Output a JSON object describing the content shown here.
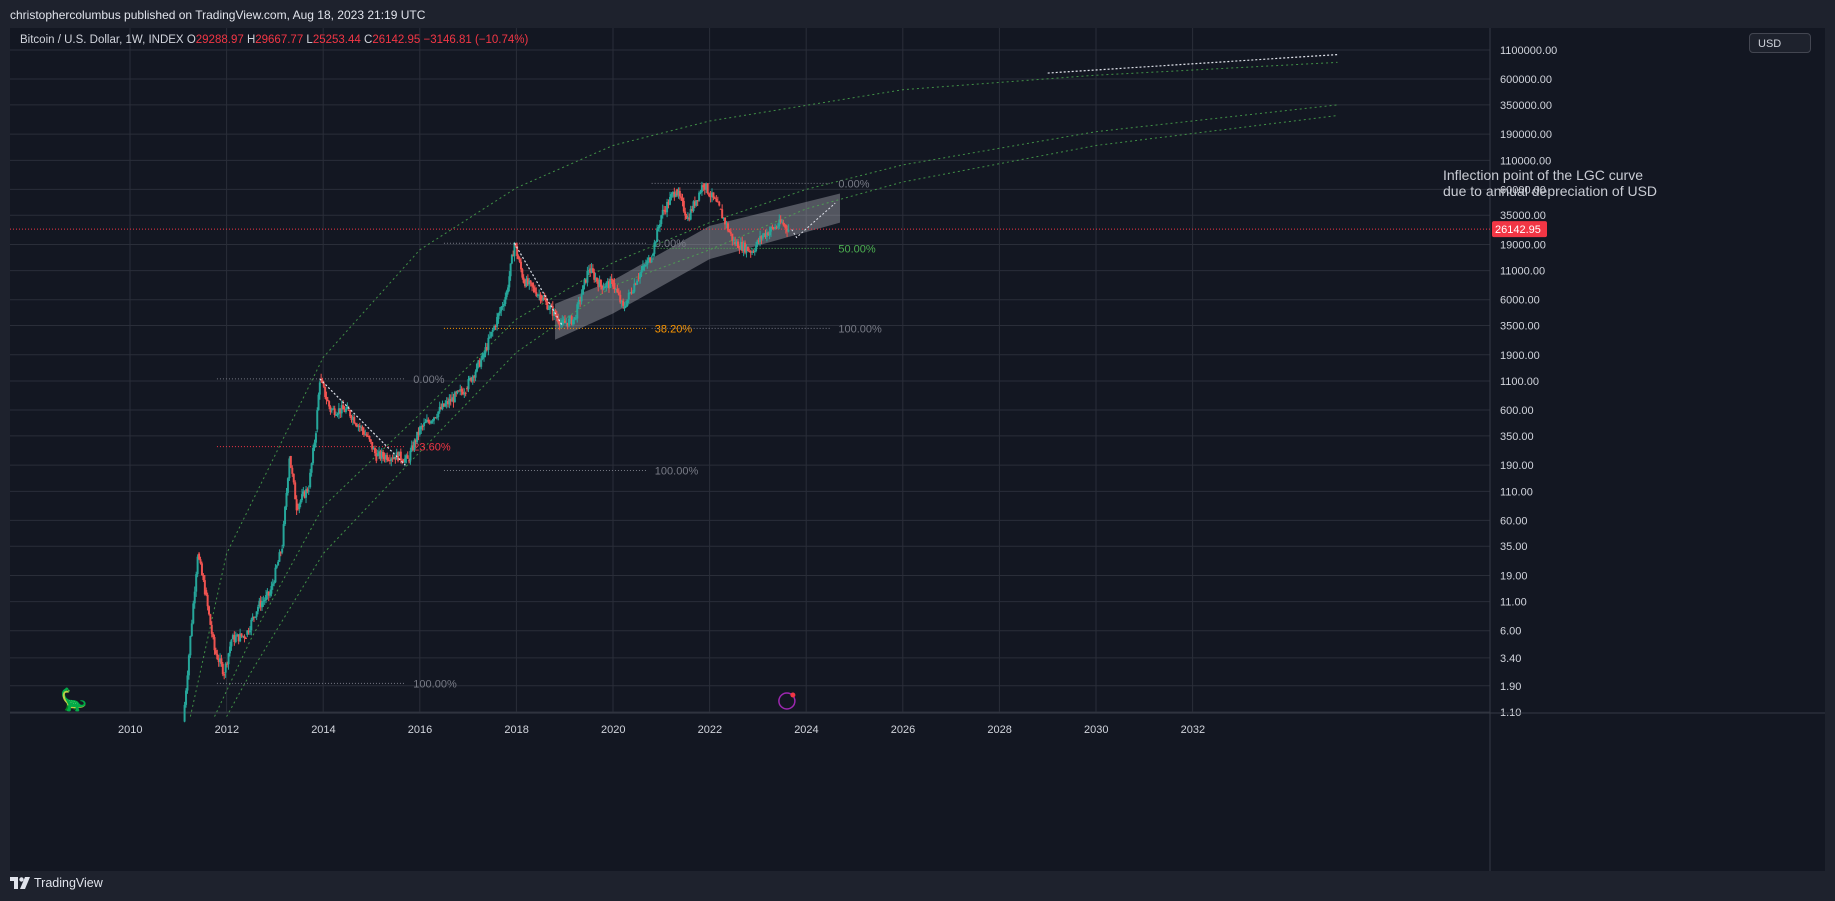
{
  "header": {
    "published_by": "christophercolumbus published on TradingView.com, Aug 18, 2023 21:19 UTC"
  },
  "legend": {
    "symbol": "Bitcoin / U.S. Dollar, 1W, INDEX",
    "o_label": "O",
    "o_value": "29288.97",
    "h_label": "H",
    "h_value": "29667.77",
    "l_label": "L",
    "l_value": "25253.44",
    "c_label": "C",
    "c_value": "26142.95",
    "change": "−3146.81 (−10.74%)"
  },
  "currency_button": "USD",
  "annotation": {
    "line1": "Inflection point of the LGC curve",
    "line2": "due to annual depreciation of USD"
  },
  "footer": {
    "brand": "TradingView"
  },
  "colors": {
    "background": "#131722",
    "up": "#26a69a",
    "down": "#ef5350",
    "price_line": "#f23645",
    "fib_green": "#4caf50",
    "fib_orange": "#ff9800",
    "fib_red": "#f23645",
    "lgc_curve": "#4caf50"
  },
  "chart_data": {
    "type": "candlestick",
    "title": "Bitcoin / U.S. Dollar, 1W, INDEX",
    "x_ticks": [
      "2010",
      "2012",
      "2014",
      "2016",
      "2018",
      "2020",
      "2022",
      "2024",
      "2026",
      "2028",
      "2030",
      "2032"
    ],
    "y_scale": "log",
    "y_ticks": [
      "1100000.00",
      "600000.00",
      "350000.00",
      "190000.00",
      "110000.00",
      "60000.00",
      "35000.00",
      "19000.00",
      "11000.00",
      "6000.00",
      "3500.00",
      "1900.00",
      "1100.00",
      "600.00",
      "350.00",
      "190.00",
      "110.00",
      "60.00",
      "35.00",
      "19.00",
      "11.00",
      "6.00",
      "3.40",
      "1.90",
      "1.10"
    ],
    "current_price": "26142.95",
    "price_path": [
      {
        "date": "2011.10",
        "price": 0.9
      },
      {
        "date": "2011.40",
        "price": 30
      },
      {
        "date": "2011.55",
        "price": 14
      },
      {
        "date": "2011.75",
        "price": 4
      },
      {
        "date": "2011.95",
        "price": 2.5
      },
      {
        "date": "2012.10",
        "price": 5
      },
      {
        "date": "2012.40",
        "price": 5.5
      },
      {
        "date": "2012.65",
        "price": 10
      },
      {
        "date": "2012.90",
        "price": 13
      },
      {
        "date": "2013.15",
        "price": 35
      },
      {
        "date": "2013.30",
        "price": 230
      },
      {
        "date": "2013.45",
        "price": 80
      },
      {
        "date": "2013.70",
        "price": 120
      },
      {
        "date": "2013.85",
        "price": 400
      },
      {
        "date": "2013.93",
        "price": 1150
      },
      {
        "date": "2014.15",
        "price": 600
      },
      {
        "date": "2014.50",
        "price": 600
      },
      {
        "date": "2014.90",
        "price": 350
      },
      {
        "date": "2015.10",
        "price": 230
      },
      {
        "date": "2015.55",
        "price": 230
      },
      {
        "date": "2015.75",
        "price": 210
      },
      {
        "date": "2016.00",
        "price": 400
      },
      {
        "date": "2016.50",
        "price": 650
      },
      {
        "date": "2016.95",
        "price": 950
      },
      {
        "date": "2017.30",
        "price": 1800
      },
      {
        "date": "2017.60",
        "price": 4000
      },
      {
        "date": "2017.80",
        "price": 7000
      },
      {
        "date": "2017.96",
        "price": 19500
      },
      {
        "date": "2018.15",
        "price": 9000
      },
      {
        "date": "2018.50",
        "price": 6500
      },
      {
        "date": "2018.95",
        "price": 3600
      },
      {
        "date": "2019.20",
        "price": 4000
      },
      {
        "date": "2019.50",
        "price": 11500
      },
      {
        "date": "2019.75",
        "price": 8000
      },
      {
        "date": "2020.00",
        "price": 8500
      },
      {
        "date": "2020.21",
        "price": 5000
      },
      {
        "date": "2020.50",
        "price": 9500
      },
      {
        "date": "2020.80",
        "price": 15000
      },
      {
        "date": "2021.00",
        "price": 35000
      },
      {
        "date": "2021.30",
        "price": 60000
      },
      {
        "date": "2021.55",
        "price": 33000
      },
      {
        "date": "2021.87",
        "price": 68000
      },
      {
        "date": "2022.20",
        "price": 40000
      },
      {
        "date": "2022.50",
        "price": 20000
      },
      {
        "date": "2022.88",
        "price": 16500
      },
      {
        "date": "2023.10",
        "price": 23000
      },
      {
        "date": "2023.50",
        "price": 30000
      },
      {
        "date": "2023.63",
        "price": 26142.95
      }
    ],
    "fibonacci_sets": [
      {
        "levels": [
          {
            "label": "0.00%",
            "price": 1150
          },
          {
            "label": "23.60%",
            "price": 280
          },
          {
            "label": "100.00%",
            "price": 2
          }
        ]
      },
      {
        "levels": [
          {
            "label": "0.00%",
            "price": 19500
          },
          {
            "label": "38.20%",
            "price": 3300
          },
          {
            "label": "100.00%",
            "price": 170
          }
        ]
      },
      {
        "levels": [
          {
            "label": "0.00%",
            "price": 68000
          },
          {
            "label": "50.00%",
            "price": 17500
          },
          {
            "label": "100.00%",
            "price": 3300
          }
        ]
      }
    ],
    "lgc_curves": [
      {
        "points": [
          {
            "date": "2011.25",
            "price": 1.0
          },
          {
            "date": "2012.00",
            "price": 30
          },
          {
            "date": "2014.00",
            "price": 1800
          },
          {
            "date": "2016.00",
            "price": 17000
          },
          {
            "date": "2018.00",
            "price": 62000
          },
          {
            "date": "2020.00",
            "price": 150000
          },
          {
            "date": "2022.00",
            "price": 250000
          },
          {
            "date": "2026.00",
            "price": 480000
          },
          {
            "date": "2030.00",
            "price": 650000
          },
          {
            "date": "2035.00",
            "price": 850000
          }
        ]
      },
      {
        "points": [
          {
            "date": "2011.75",
            "price": 1.0
          },
          {
            "date": "2012.50",
            "price": 5
          },
          {
            "date": "2014.00",
            "price": 80
          },
          {
            "date": "2016.00",
            "price": 550
          },
          {
            "date": "2018.00",
            "price": 4000
          },
          {
            "date": "2020.00",
            "price": 13000
          },
          {
            "date": "2022.00",
            "price": 30000
          },
          {
            "date": "2024.00",
            "price": 60000
          },
          {
            "date": "2026.00",
            "price": 100000
          },
          {
            "date": "2030.00",
            "price": 200000
          },
          {
            "date": "2035.00",
            "price": 350000
          }
        ]
      },
      {
        "points": [
          {
            "date": "2012.00",
            "price": 1.0
          },
          {
            "date": "2012.50",
            "price": 2.5
          },
          {
            "date": "2014.00",
            "price": 30
          },
          {
            "date": "2016.00",
            "price": 250
          },
          {
            "date": "2018.00",
            "price": 2000
          },
          {
            "date": "2020.00",
            "price": 8000
          },
          {
            "date": "2022.00",
            "price": 17000
          },
          {
            "date": "2024.00",
            "price": 40000
          },
          {
            "date": "2026.00",
            "price": 70000
          },
          {
            "date": "2030.00",
            "price": 150000
          },
          {
            "date": "2035.00",
            "price": 280000
          }
        ]
      }
    ],
    "projection": [
      {
        "date": "2023.70",
        "price": 26000
      },
      {
        "date": "2023.80",
        "price": 22000
      },
      {
        "date": "2024.60",
        "price": 45000
      }
    ],
    "outer_projection": [
      {
        "date": "2029.00",
        "price": 680000
      },
      {
        "date": "2035.00",
        "price": 1000000
      }
    ],
    "channel_band": {
      "top": [
        {
          "date": "2018.80",
          "price": 5500
        },
        {
          "date": "2020.00",
          "price": 9000
        },
        {
          "date": "2022.00",
          "price": 28000
        },
        {
          "date": "2024.70",
          "price": 55000
        }
      ],
      "bottom": [
        {
          "date": "2018.80",
          "price": 2600
        },
        {
          "date": "2020.00",
          "price": 4500
        },
        {
          "date": "2022.00",
          "price": 14000
        },
        {
          "date": "2024.70",
          "price": 30000
        }
      ]
    }
  }
}
